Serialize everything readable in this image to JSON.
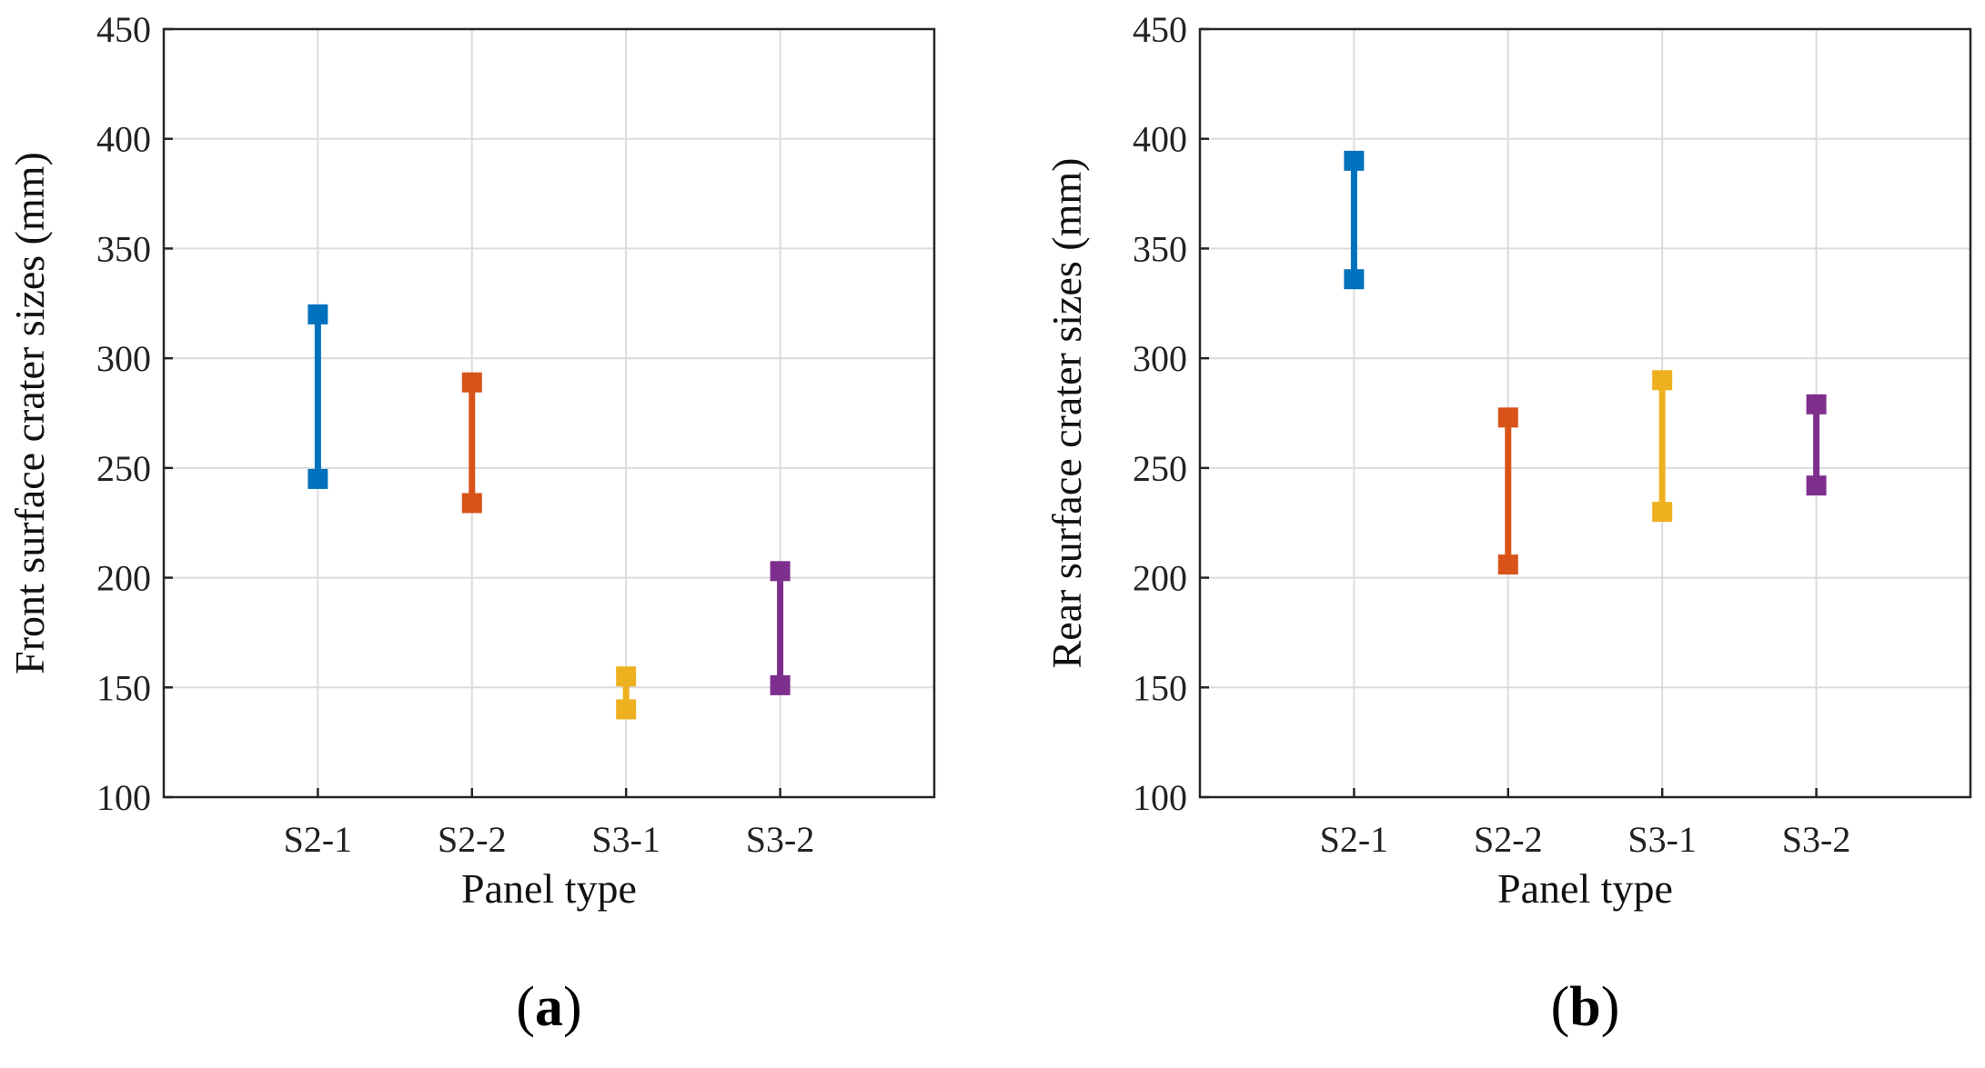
{
  "chart_data": [
    {
      "type": "range",
      "panel_label": "(a)",
      "panel_letter": "a",
      "xlabel": "Panel type",
      "ylabel": "Front surface crater sizes (mm)",
      "categories": [
        "S2-1",
        "S2-2",
        "S3-1",
        "S3-2"
      ],
      "ylim": [
        100,
        450
      ],
      "yticks": [
        "100",
        "150",
        "200",
        "250",
        "300",
        "350",
        "400",
        "450"
      ],
      "series": [
        {
          "name": "S2-1",
          "low": 245,
          "high": 320,
          "color": "#0072BD"
        },
        {
          "name": "S2-2",
          "low": 234,
          "high": 289,
          "color": "#D95319"
        },
        {
          "name": "S3-1",
          "low": 140,
          "high": 155,
          "color": "#EDB120"
        },
        {
          "name": "S3-2",
          "low": 151,
          "high": 203,
          "color": "#7E2F8E"
        }
      ],
      "grid": true
    },
    {
      "type": "range",
      "panel_label": "(b)",
      "panel_letter": "b",
      "xlabel": "Panel type",
      "ylabel": "Rear surface crater sizes (mm)",
      "categories": [
        "S2-1",
        "S2-2",
        "S3-1",
        "S3-2"
      ],
      "ylim": [
        100,
        450
      ],
      "yticks": [
        "100",
        "150",
        "200",
        "250",
        "300",
        "350",
        "400",
        "450"
      ],
      "series": [
        {
          "name": "S2-1",
          "low": 336,
          "high": 390,
          "color": "#0072BD"
        },
        {
          "name": "S2-2",
          "low": 206,
          "high": 273,
          "color": "#D95319"
        },
        {
          "name": "S3-1",
          "low": 230,
          "high": 290,
          "color": "#EDB120"
        },
        {
          "name": "S3-2",
          "low": 242,
          "high": 279,
          "color": "#7E2F8E"
        }
      ],
      "grid": true
    }
  ]
}
